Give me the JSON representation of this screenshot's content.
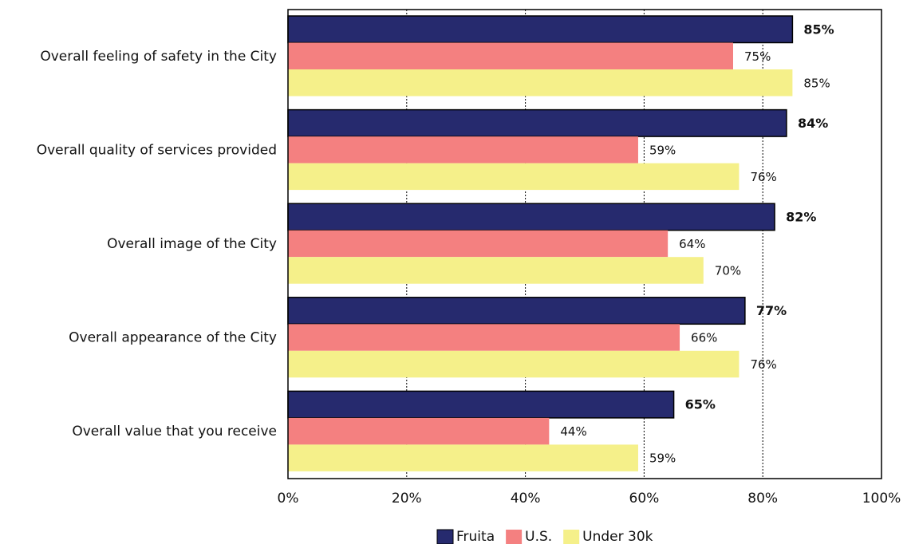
{
  "chart_data": {
    "type": "hbar",
    "categories": [
      "Overall feeling of safety in the City",
      "Overall quality of services provided",
      "Overall image of the City",
      "Overall appearance of the City",
      "Overall value that you receive"
    ],
    "series": [
      {
        "name": "Fruita",
        "color": "#262a6e",
        "values": [
          85,
          84,
          82,
          77,
          65
        ],
        "value_labels": [
          "85%",
          "84%",
          "82%",
          "77%",
          "65%"
        ]
      },
      {
        "name": "U.S.",
        "color": "#f48080",
        "values": [
          75,
          59,
          64,
          66,
          44
        ],
        "value_labels": [
          "75%",
          "59%",
          "64%",
          "66%",
          "44%"
        ]
      },
      {
        "name": "Under 30k",
        "color": "#f5f08a",
        "values": [
          85,
          76,
          70,
          76,
          59
        ],
        "value_labels": [
          "85%",
          "76%",
          "70%",
          "76%",
          "59%"
        ]
      }
    ],
    "xlim": [
      0,
      100
    ],
    "xticks": [
      {
        "value": 0,
        "label": "0%"
      },
      {
        "value": 20,
        "label": "20%"
      },
      {
        "value": 40,
        "label": "40%"
      },
      {
        "value": 60,
        "label": "60%"
      },
      {
        "value": 80,
        "label": "80%"
      },
      {
        "value": 100,
        "label": "100%"
      }
    ],
    "grid": true,
    "legend": "bottom"
  }
}
